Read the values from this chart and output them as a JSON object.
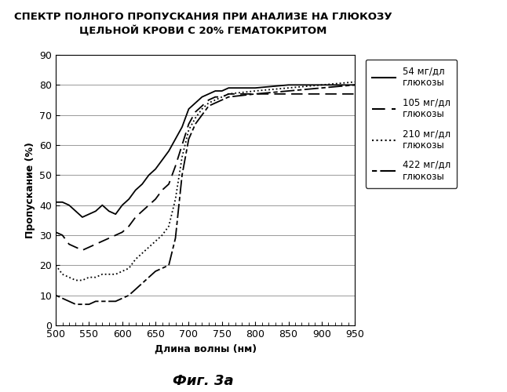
{
  "title": "СПЕКТР ПОЛНОГО ПРОПУСКАНИЯ ПРИ АНАЛИЗЕ НА ГЛЮКОЗУ\nЦЕЛЬНОЙ КРОВИ С 20% ГЕМАТОКРИТОМ",
  "xlabel": "Длина волны (нм)",
  "ylabel": "Пропускание (%)",
  "caption": "Фиг. 3а",
  "xlim": [
    500,
    950
  ],
  "ylim": [
    0,
    90
  ],
  "xticks": [
    500,
    550,
    600,
    650,
    700,
    750,
    800,
    850,
    900,
    950
  ],
  "yticks": [
    0,
    10,
    20,
    30,
    40,
    50,
    60,
    70,
    80,
    90
  ],
  "background_color": "#ffffff",
  "line_color": "#000000",
  "series": [
    {
      "label": "54 мг/дл\nглюкозы",
      "linestyle": "solid",
      "linewidth": 1.3,
      "x": [
        500,
        510,
        520,
        530,
        540,
        550,
        560,
        570,
        580,
        590,
        600,
        610,
        620,
        630,
        640,
        650,
        660,
        670,
        680,
        690,
        700,
        710,
        720,
        730,
        740,
        750,
        760,
        800,
        850,
        900,
        950
      ],
      "y": [
        41,
        41,
        40,
        38,
        36,
        37,
        38,
        40,
        38,
        37,
        40,
        42,
        45,
        47,
        50,
        52,
        55,
        58,
        62,
        66,
        72,
        74,
        76,
        77,
        78,
        78,
        79,
        79,
        80,
        80,
        80
      ]
    },
    {
      "label": "105 мг/дл\nглюкозы",
      "linestyle": "dashed",
      "linewidth": 1.3,
      "dashes": [
        8,
        4
      ],
      "x": [
        500,
        510,
        520,
        530,
        540,
        550,
        560,
        570,
        580,
        590,
        600,
        610,
        620,
        630,
        640,
        650,
        660,
        670,
        680,
        690,
        700,
        710,
        720,
        730,
        740,
        750,
        760,
        800,
        850,
        900,
        950
      ],
      "y": [
        31,
        30,
        27,
        26,
        25,
        26,
        27,
        28,
        29,
        30,
        31,
        33,
        36,
        38,
        40,
        42,
        45,
        47,
        53,
        60,
        67,
        71,
        73,
        75,
        76,
        76,
        77,
        77,
        77,
        77,
        77
      ]
    },
    {
      "label": "210 мг/дл\nглюкозы",
      "linestyle": "dotted",
      "linewidth": 1.3,
      "x": [
        500,
        510,
        520,
        530,
        540,
        550,
        560,
        570,
        580,
        590,
        600,
        610,
        620,
        630,
        640,
        650,
        660,
        670,
        680,
        690,
        700,
        710,
        720,
        730,
        740,
        750,
        760,
        800,
        850,
        900,
        950
      ],
      "y": [
        20,
        17,
        16,
        15,
        15,
        16,
        16,
        17,
        17,
        17,
        18,
        19,
        22,
        24,
        26,
        28,
        30,
        33,
        42,
        56,
        65,
        69,
        72,
        74,
        75,
        76,
        77,
        78,
        79,
        80,
        81
      ]
    },
    {
      "label": "422 мг/дл\nглюкозы",
      "linestyle": "dashdot",
      "linewidth": 1.3,
      "dashes": [
        3,
        2,
        10,
        2
      ],
      "x": [
        500,
        510,
        520,
        530,
        540,
        550,
        560,
        570,
        580,
        590,
        600,
        610,
        620,
        630,
        640,
        650,
        660,
        670,
        680,
        690,
        700,
        710,
        720,
        730,
        740,
        750,
        760,
        800,
        850,
        900,
        950
      ],
      "y": [
        10,
        9,
        8,
        7,
        7,
        7,
        8,
        8,
        8,
        8,
        9,
        10,
        12,
        14,
        16,
        18,
        19,
        20,
        29,
        50,
        62,
        67,
        70,
        73,
        74,
        75,
        76,
        77,
        78,
        79,
        80
      ]
    }
  ]
}
